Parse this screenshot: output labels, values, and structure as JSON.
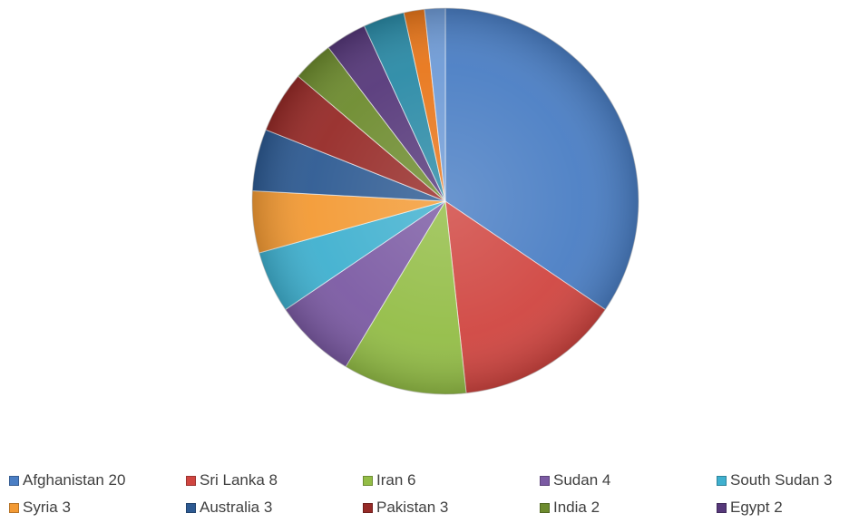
{
  "chart_data": {
    "type": "pie",
    "slices": [
      {
        "label": "Afghanistan",
        "value": 20,
        "legend_text": "Afghanistan 20",
        "color": "#4a7ec4"
      },
      {
        "label": "Sri Lanka",
        "value": 8,
        "legend_text": "Sri Lanka 8",
        "color": "#d04540"
      },
      {
        "label": "Iran",
        "value": 6,
        "legend_text": "Iran 6",
        "color": "#93bd46"
      },
      {
        "label": "Sudan",
        "value": 4,
        "legend_text": "Sudan 4",
        "color": "#7b5aa3"
      },
      {
        "label": "South Sudan",
        "value": 3,
        "legend_text": "South Sudan 3",
        "color": "#3fb0cf"
      },
      {
        "label": "Syria",
        "value": 3,
        "legend_text": "Syria 3",
        "color": "#f39a34"
      },
      {
        "label": "Australia",
        "value": 3,
        "legend_text": "Australia 3",
        "color": "#2d5a92"
      },
      {
        "label": "Pakistan",
        "value": 3,
        "legend_text": "Pakistan 3",
        "color": "#962a27"
      },
      {
        "label": "India",
        "value": 2,
        "legend_text": "India 2",
        "color": "#6d8b2e"
      },
      {
        "label": "Egypt",
        "value": 2,
        "legend_text": "Egypt 2",
        "color": "#56387a"
      },
      {
        "label": "",
        "value": 2,
        "legend_text": "",
        "color": "#2a8aa6"
      },
      {
        "label": "",
        "value": 1,
        "legend_text": "",
        "color": "#e8761a"
      },
      {
        "label": "",
        "value": 1,
        "legend_text": "",
        "color": "#6f9bd6"
      }
    ],
    "start_angle": "12 o'clock",
    "direction": "clockwise",
    "legend_position": "bottom"
  }
}
